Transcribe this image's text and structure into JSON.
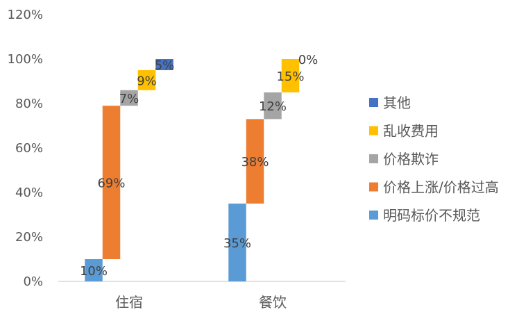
{
  "chart_data": {
    "type": "bar",
    "subtype": "stacked-waterfall",
    "categories": [
      "住宿",
      "餐饮"
    ],
    "ylim": [
      0,
      120
    ],
    "yticks": [
      "0%",
      "20%",
      "40%",
      "60%",
      "80%",
      "100%",
      "120%"
    ],
    "grid": false,
    "legend_position": "right",
    "series": [
      {
        "name": "明码标价不规范",
        "color": "#5b9bd5",
        "values": [
          10,
          35
        ],
        "labels": [
          "10%",
          "35%"
        ]
      },
      {
        "name": "价格上涨/价格过高",
        "color": "#ed7d31",
        "values": [
          69,
          38
        ],
        "labels": [
          "69%",
          "38%"
        ]
      },
      {
        "name": "价格欺诈",
        "color": "#a5a5a5",
        "values": [
          7,
          12
        ],
        "labels": [
          "7%",
          "12%"
        ]
      },
      {
        "name": "乱收费用",
        "color": "#ffc000",
        "values": [
          9,
          15
        ],
        "labels": [
          "9%",
          "15%"
        ]
      },
      {
        "name": "其他",
        "color": "#4472c4",
        "values": [
          5,
          0
        ],
        "labels": [
          "5%",
          "0%"
        ]
      }
    ],
    "legend_order": [
      "其他",
      "乱收费用",
      "价格欺诈",
      "价格上涨/价格过高",
      "明码标价不规范"
    ]
  }
}
